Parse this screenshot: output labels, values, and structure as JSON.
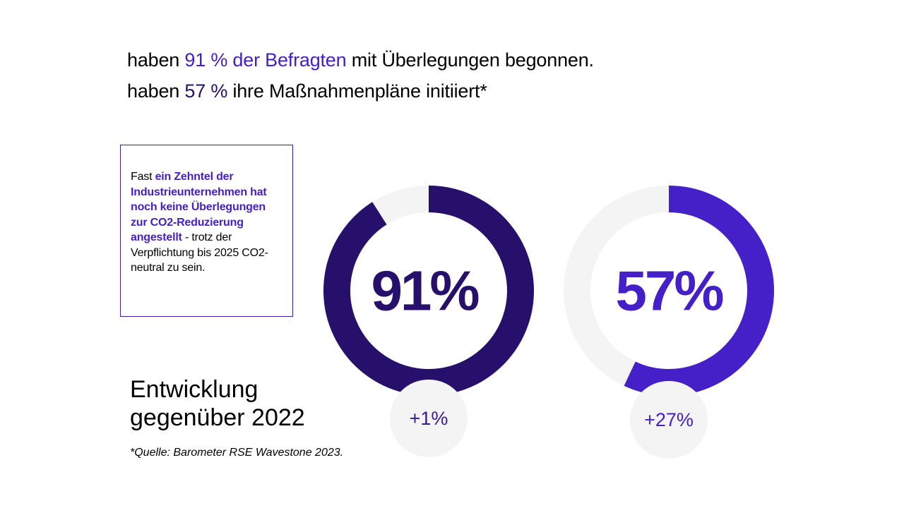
{
  "headline": {
    "line1": {
      "prefix": "haben ",
      "highlight": "91 % der Befragten",
      "suffix": " mit Überlegungen begonnen."
    },
    "line2": {
      "prefix": "haben ",
      "highlight": "57 %",
      "suffix": " ihre Maßnahmenpläne initiiert*"
    }
  },
  "callout": {
    "lead": "Fast ",
    "bold": "ein Zehntel der Industrieunternehmen hat noch keine Überlegungen zur CO2-Reduzierung angestellt",
    "tail": " - trotz der Verpflichtung bis 2025 CO2-neutral zu sein."
  },
  "development": {
    "title": "Entwicklung\ngegenüber 2022"
  },
  "source": "*Quelle: Barometer RSE Wavestone 2023.",
  "colors": {
    "dark_purple": "#26106b",
    "bright_purple": "#4520c8",
    "track": "#f4f4f4"
  },
  "chart_data": [
    {
      "type": "pie",
      "variant": "donut",
      "values": [
        91,
        9
      ],
      "label": "91%",
      "delta": "+1%",
      "colors": [
        "#26106b",
        "#f4f4f4"
      ]
    },
    {
      "type": "pie",
      "variant": "donut",
      "values": [
        57,
        43
      ],
      "label": "57%",
      "delta": "+27%",
      "colors": [
        "#4520c8",
        "#f4f4f4"
      ]
    }
  ]
}
